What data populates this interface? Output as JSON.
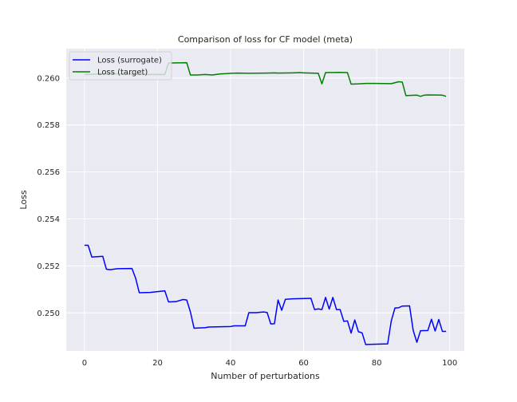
{
  "chart_data": {
    "type": "line",
    "title": "Comparison of loss for CF model (meta)",
    "xlabel": "Number of perturbations",
    "ylabel": "Loss",
    "xlim": [
      -5,
      104
    ],
    "ylim": [
      0.24838,
      0.26125
    ],
    "xticks": [
      0,
      20,
      40,
      60,
      80,
      100
    ],
    "yticks": [
      0.25,
      0.252,
      0.254,
      0.256,
      0.258,
      0.26
    ],
    "ytick_format": 3,
    "grid": true,
    "legend_position": "top-left",
    "series": [
      {
        "name": "Loss (surrogate)",
        "color": "#0000ff",
        "points": [
          [
            0,
            0.25288
          ],
          [
            1,
            0.25288
          ],
          [
            2,
            0.25238
          ],
          [
            5,
            0.25241
          ],
          [
            6,
            0.25186
          ],
          [
            7,
            0.25184
          ],
          [
            9,
            0.25188
          ],
          [
            13,
            0.25189
          ],
          [
            14,
            0.25148
          ],
          [
            15,
            0.25086
          ],
          [
            18,
            0.25087
          ],
          [
            22,
            0.25094
          ],
          [
            23,
            0.25047
          ],
          [
            25,
            0.25048
          ],
          [
            27,
            0.25057
          ],
          [
            28,
            0.25055
          ],
          [
            29,
            0.25004
          ],
          [
            30,
            0.24935
          ],
          [
            33,
            0.24937
          ],
          [
            34,
            0.2494
          ],
          [
            40,
            0.24942
          ],
          [
            41,
            0.24945
          ],
          [
            44,
            0.24945
          ],
          [
            45,
            0.25001
          ],
          [
            47,
            0.25001
          ],
          [
            49,
            0.25004
          ],
          [
            50,
            0.25002
          ],
          [
            51,
            0.24953
          ],
          [
            52,
            0.24954
          ],
          [
            53,
            0.25055
          ],
          [
            54,
            0.25011
          ],
          [
            55,
            0.25058
          ],
          [
            57,
            0.2506
          ],
          [
            62,
            0.25062
          ],
          [
            63,
            0.25014
          ],
          [
            64,
            0.25017
          ],
          [
            65,
            0.25014
          ],
          [
            66,
            0.25066
          ],
          [
            67,
            0.25016
          ],
          [
            68,
            0.25066
          ],
          [
            69,
            0.25014
          ],
          [
            70,
            0.25014
          ],
          [
            71,
            0.24964
          ],
          [
            72,
            0.24966
          ],
          [
            73,
            0.24914
          ],
          [
            74,
            0.2497
          ],
          [
            75,
            0.2492
          ],
          [
            76,
            0.24915
          ],
          [
            77,
            0.24865
          ],
          [
            78,
            0.24866
          ],
          [
            83,
            0.24868
          ],
          [
            84,
            0.24966
          ],
          [
            85,
            0.25021
          ],
          [
            86,
            0.25022
          ],
          [
            87,
            0.25029
          ],
          [
            89,
            0.2503
          ],
          [
            90,
            0.24925
          ],
          [
            91,
            0.24875
          ],
          [
            92,
            0.24924
          ],
          [
            94,
            0.24925
          ],
          [
            95,
            0.24973
          ],
          [
            96,
            0.24923
          ],
          [
            97,
            0.24972
          ],
          [
            98,
            0.24921
          ],
          [
            99,
            0.24921
          ]
        ]
      },
      {
        "name": "Loss (target)",
        "color": "#008000",
        "points": [
          [
            0,
            0.26015
          ],
          [
            2,
            0.26016
          ],
          [
            5,
            0.26018
          ],
          [
            10,
            0.26017
          ],
          [
            15,
            0.26015
          ],
          [
            20,
            0.26015
          ],
          [
            22,
            0.26015
          ],
          [
            23,
            0.26064
          ],
          [
            28,
            0.26065
          ],
          [
            29,
            0.26013
          ],
          [
            31,
            0.26013
          ],
          [
            33,
            0.26015
          ],
          [
            35,
            0.26013
          ],
          [
            37,
            0.26017
          ],
          [
            39,
            0.26019
          ],
          [
            40,
            0.2602
          ],
          [
            42,
            0.26021
          ],
          [
            45,
            0.2602
          ],
          [
            50,
            0.26021
          ],
          [
            52,
            0.26022
          ],
          [
            53,
            0.26021
          ],
          [
            57,
            0.26022
          ],
          [
            59,
            0.26023
          ],
          [
            60,
            0.26022
          ],
          [
            64,
            0.2602
          ],
          [
            65,
            0.25975
          ],
          [
            66,
            0.26023
          ],
          [
            70,
            0.26024
          ],
          [
            72,
            0.26023
          ],
          [
            73,
            0.25974
          ],
          [
            75,
            0.25975
          ],
          [
            77,
            0.25977
          ],
          [
            80,
            0.25977
          ],
          [
            84,
            0.25976
          ],
          [
            86,
            0.25984
          ],
          [
            87,
            0.25983
          ],
          [
            88,
            0.25925
          ],
          [
            91,
            0.25927
          ],
          [
            92,
            0.25922
          ],
          [
            93,
            0.25927
          ],
          [
            94,
            0.25928
          ],
          [
            98,
            0.25927
          ],
          [
            99,
            0.25922
          ]
        ]
      }
    ]
  }
}
